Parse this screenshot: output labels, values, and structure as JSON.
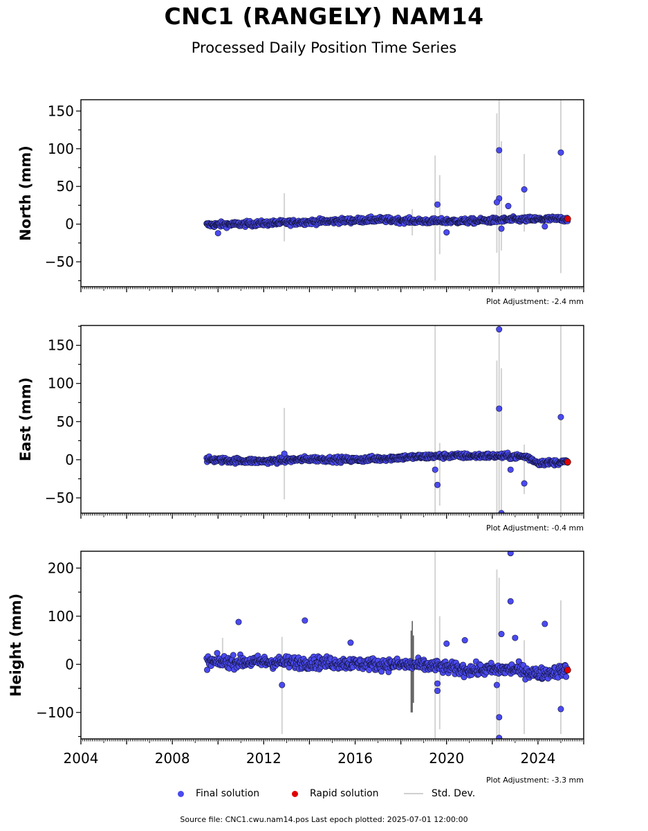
{
  "title": "CNC1 (RANGELY) NAM14",
  "subtitle": "Processed Daily Position Time Series",
  "legend": {
    "final": "Final solution",
    "rapid": "Rapid solution",
    "stddev": "Std. Dev."
  },
  "footer": "Source file: CNC1.cwu.nam14.pos  Last epoch plotted: 2025-07-01 12:00:00",
  "colors": {
    "final": "#4a4af0",
    "rapid": "#e00000",
    "stddev": "#d3d3d3"
  },
  "chart_data": [
    {
      "type": "scatter",
      "ylabel": "North (mm)",
      "adjustment": "Plot Adjustment: -2.4 mm",
      "xlim": [
        2004.0,
        2026.0
      ],
      "ylim": [
        -83,
        165
      ],
      "yticks": [
        -50,
        0,
        50,
        100,
        150
      ],
      "yticklabels": [
        "−50",
        "0",
        "50",
        "100",
        "150"
      ],
      "trend": [
        [
          2009.5,
          -1
        ],
        [
          2011.0,
          0
        ],
        [
          2013.0,
          2
        ],
        [
          2015.0,
          4
        ],
        [
          2017.0,
          6
        ],
        [
          2019.0,
          4
        ],
        [
          2021.0,
          4
        ],
        [
          2023.0,
          6
        ],
        [
          2025.3,
          7
        ]
      ],
      "noise": 2.5,
      "outliers": [
        {
          "x": 2019.6,
          "y": 26
        },
        {
          "x": 2022.3,
          "y": 98
        },
        {
          "x": 2022.3,
          "y": 34
        },
        {
          "x": 2022.2,
          "y": 29
        },
        {
          "x": 2022.4,
          "y": -6
        },
        {
          "x": 2022.7,
          "y": 24
        },
        {
          "x": 2023.4,
          "y": 46
        },
        {
          "x": 2024.3,
          "y": -3
        },
        {
          "x": 2025.0,
          "y": 95
        },
        {
          "x": 2010.0,
          "y": -12
        },
        {
          "x": 2020.0,
          "y": -11
        }
      ],
      "errorbars": [
        {
          "x": 2012.9,
          "lo": -23,
          "hi": 41
        },
        {
          "x": 2019.5,
          "lo": -75,
          "hi": 91
        },
        {
          "x": 2019.7,
          "lo": -40,
          "hi": 65
        },
        {
          "x": 2022.2,
          "lo": -38,
          "hi": 147
        },
        {
          "x": 2022.3,
          "lo": -80,
          "hi": 165
        },
        {
          "x": 2022.4,
          "lo": -35,
          "hi": 110
        },
        {
          "x": 2023.4,
          "lo": -10,
          "hi": 93
        },
        {
          "x": 2025.0,
          "lo": -65,
          "hi": 165
        },
        {
          "x": 2018.5,
          "lo": -15,
          "hi": 20
        }
      ],
      "rapid": [
        {
          "x": 2025.3,
          "y": 7
        }
      ]
    },
    {
      "type": "scatter",
      "ylabel": "East (mm)",
      "adjustment": "Plot Adjustment: -0.4 mm",
      "xlim": [
        2004.0,
        2026.0
      ],
      "ylim": [
        -70,
        176
      ],
      "yticks": [
        -50,
        0,
        50,
        100,
        150
      ],
      "yticklabels": [
        "−50",
        "0",
        "50",
        "100",
        "150"
      ],
      "trend": [
        [
          2009.5,
          0
        ],
        [
          2012.0,
          -2
        ],
        [
          2014.0,
          1
        ],
        [
          2016.0,
          0
        ],
        [
          2018.0,
          3
        ],
        [
          2020.0,
          5
        ],
        [
          2022.0,
          5
        ],
        [
          2023.5,
          4
        ],
        [
          2024.0,
          -4
        ],
        [
          2025.3,
          -3
        ]
      ],
      "noise": 2.5,
      "outliers": [
        {
          "x": 2012.9,
          "y": 8
        },
        {
          "x": 2019.5,
          "y": -13
        },
        {
          "x": 2019.6,
          "y": -33
        },
        {
          "x": 2022.3,
          "y": 171
        },
        {
          "x": 2022.3,
          "y": 67
        },
        {
          "x": 2022.4,
          "y": -70
        },
        {
          "x": 2022.8,
          "y": -13
        },
        {
          "x": 2023.4,
          "y": -31
        },
        {
          "x": 2025.0,
          "y": 56
        }
      ],
      "errorbars": [
        {
          "x": 2012.9,
          "lo": -52,
          "hi": 68
        },
        {
          "x": 2019.5,
          "lo": -70,
          "hi": 176
        },
        {
          "x": 2019.7,
          "lo": -60,
          "hi": 22
        },
        {
          "x": 2022.2,
          "lo": -70,
          "hi": 130
        },
        {
          "x": 2022.3,
          "lo": -70,
          "hi": 176
        },
        {
          "x": 2022.4,
          "lo": -70,
          "hi": 120
        },
        {
          "x": 2023.4,
          "lo": -45,
          "hi": 20
        },
        {
          "x": 2025.0,
          "lo": -70,
          "hi": 176
        }
      ],
      "rapid": [
        {
          "x": 2025.3,
          "y": -3
        }
      ]
    },
    {
      "type": "scatter",
      "ylabel": "Height (mm)",
      "adjustment": "Plot Adjustment: -3.3 mm",
      "xlim": [
        2004.0,
        2026.0
      ],
      "ylim": [
        -155,
        235
      ],
      "yticks": [
        -100,
        0,
        100,
        200
      ],
      "yticklabels": [
        "−100",
        "0",
        "100",
        "200"
      ],
      "xticks": [
        2004,
        2008,
        2012,
        2016,
        2020,
        2024
      ],
      "xticklabels": [
        "2004",
        "2008",
        "2012",
        "2016",
        "2020",
        "2024"
      ],
      "trend": [
        [
          2009.5,
          5
        ],
        [
          2012.0,
          5
        ],
        [
          2015.0,
          3
        ],
        [
          2017.0,
          0
        ],
        [
          2019.0,
          -2
        ],
        [
          2021.0,
          -12
        ],
        [
          2023.0,
          -10
        ],
        [
          2024.0,
          -20
        ],
        [
          2025.3,
          -12
        ]
      ],
      "noise": 9,
      "outliers": [
        {
          "x": 2010.9,
          "y": 88
        },
        {
          "x": 2013.8,
          "y": 91
        },
        {
          "x": 2012.8,
          "y": -43
        },
        {
          "x": 2019.6,
          "y": -55
        },
        {
          "x": 2019.6,
          "y": -40
        },
        {
          "x": 2022.2,
          "y": -43
        },
        {
          "x": 2022.3,
          "y": -110
        },
        {
          "x": 2022.3,
          "y": -153
        },
        {
          "x": 2022.4,
          "y": 63
        },
        {
          "x": 2022.8,
          "y": 231
        },
        {
          "x": 2022.8,
          "y": 131
        },
        {
          "x": 2023.0,
          "y": 55
        },
        {
          "x": 2024.3,
          "y": 84
        },
        {
          "x": 2025.0,
          "y": -93
        },
        {
          "x": 2020.8,
          "y": 50
        },
        {
          "x": 2020.0,
          "y": 43
        },
        {
          "x": 2015.8,
          "y": 45
        }
      ],
      "errorbars": [
        {
          "x": 2010.2,
          "lo": 5,
          "hi": 55
        },
        {
          "x": 2012.8,
          "lo": -145,
          "hi": 57
        },
        {
          "x": 2019.5,
          "lo": -155,
          "hi": 235
        },
        {
          "x": 2019.7,
          "lo": -135,
          "hi": 100
        },
        {
          "x": 2022.2,
          "lo": -155,
          "hi": 197
        },
        {
          "x": 2022.3,
          "lo": -155,
          "hi": 180
        },
        {
          "x": 2023.4,
          "lo": -145,
          "hi": 50
        },
        {
          "x": 2025.0,
          "lo": -145,
          "hi": 133
        },
        {
          "x": 2018.45,
          "lo": -100,
          "hi": 70,
          "dark": true
        },
        {
          "x": 2018.5,
          "lo": -100,
          "hi": 90,
          "dark": true
        },
        {
          "x": 2018.55,
          "lo": -80,
          "hi": 60,
          "dark": true
        }
      ],
      "rapid": [
        {
          "x": 2025.3,
          "y": -12
        }
      ]
    }
  ]
}
